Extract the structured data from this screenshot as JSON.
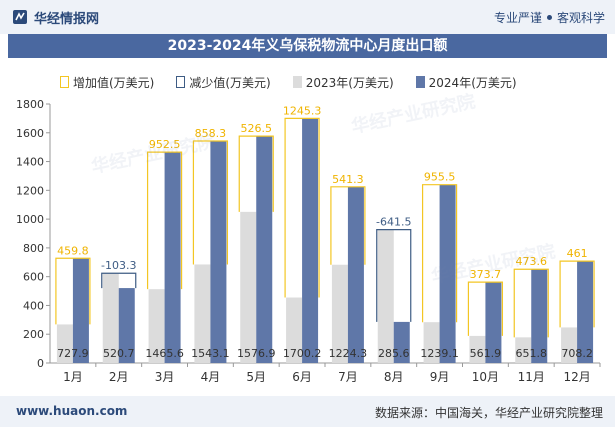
{
  "header": {
    "brand": "华经情报网",
    "slogan_left": "专业严谨",
    "slogan_right": "客观科学"
  },
  "watermark": "华经产业研究院",
  "footer": {
    "website": "www.huaon.com",
    "source": "数据来源：中国海关，华经产业研究院整理"
  },
  "colors": {
    "increase": "#f3c623",
    "decrease": "#3e5c84",
    "y2023": "#dcdcdc",
    "y2024": "#5f77a8",
    "increase_label": "#f0b400",
    "decrease_label": "#3e5c84"
  },
  "chart_data": {
    "type": "bar",
    "title": "2023-2024年义乌保税物流中心月度出口额",
    "legend": [
      "增加值(万美元)",
      "减少值(万美元)",
      "2023年(万美元)",
      "2024年(万美元)"
    ],
    "legend_position": "top",
    "categories": [
      "1月",
      "2月",
      "3月",
      "4月",
      "5月",
      "6月",
      "7月",
      "8月",
      "9月",
      "10月",
      "11月",
      "12月"
    ],
    "series": [
      {
        "name": "2023年(万美元)",
        "values": [
          268.1,
          624.0,
          513.0,
          684.8,
          1050.4,
          455.0,
          683.0,
          927.1,
          283.6,
          188.2,
          178.2,
          247.2
        ]
      },
      {
        "name": "2024年(万美元)",
        "values": [
          727.9,
          520.7,
          1465.6,
          1543.1,
          1576.9,
          1700.2,
          1224.3,
          285.6,
          1239.1,
          561.9,
          651.8,
          708.2
        ]
      }
    ],
    "change": {
      "values": [
        459.8,
        -103.3,
        952.5,
        858.3,
        526.5,
        1245.3,
        541.3,
        -641.5,
        955.5,
        373.7,
        473.6,
        461
      ],
      "labels": [
        "459.8",
        "-103.3",
        "952.5",
        "858.3",
        "526.5",
        "1245.3",
        "541.3",
        "-641.5",
        "955.5",
        "373.7",
        "473.6",
        "461"
      ]
    },
    "value_labels": [
      "727.9",
      "520.7",
      "1465.6",
      "1543.1",
      "1576.9",
      "1700.2",
      "1224.3",
      "285.6",
      "1239.1",
      "561.9",
      "651.8",
      "708.2"
    ],
    "ylim": [
      0,
      1800
    ],
    "yticks": [
      0,
      200,
      400,
      600,
      800,
      1000,
      1200,
      1400,
      1600,
      1800
    ],
    "grid": false
  }
}
